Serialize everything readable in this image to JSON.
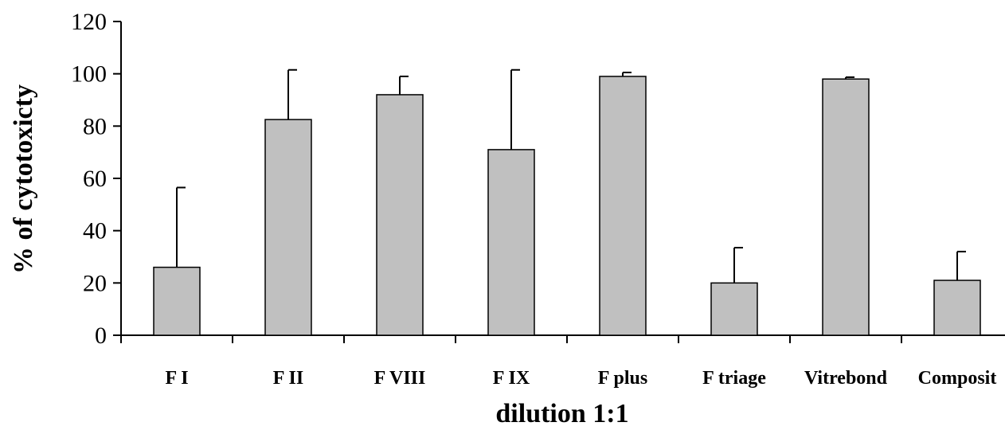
{
  "chart_data": {
    "type": "bar",
    "title": "",
    "xlabel": "dilution 1:1",
    "ylabel": "% of cytotoxicty",
    "ylim": [
      0,
      120
    ],
    "yticks": [
      0,
      20,
      40,
      60,
      80,
      100,
      120
    ],
    "categories": [
      "F I",
      "F II",
      "F VIII",
      "F IX",
      "F plus",
      "F triage",
      "Vitrebond",
      "Composit"
    ],
    "values": [
      26,
      82.5,
      92,
      71,
      99,
      20,
      98,
      21
    ],
    "error_upper": [
      30.5,
      19,
      7,
      30.5,
      1.5,
      13.5,
      0.7,
      11
    ],
    "grid": false,
    "legend": "none",
    "colors": {
      "bar_fill": "#c0c0c0",
      "bar_stroke": "#000000",
      "axis": "#000000"
    }
  }
}
